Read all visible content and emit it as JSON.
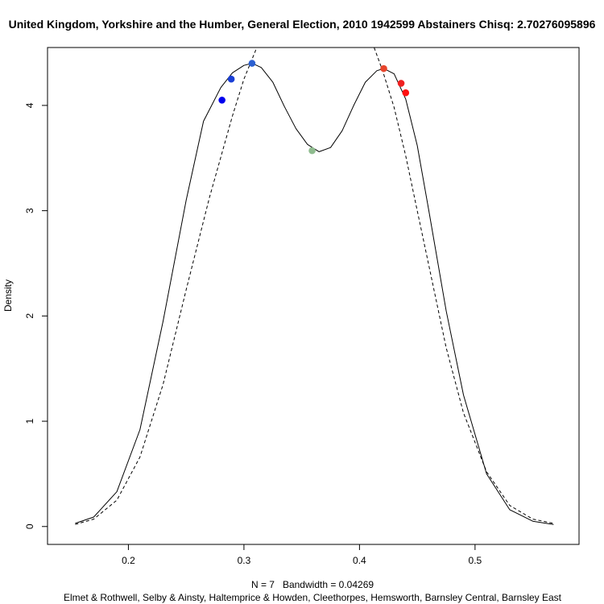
{
  "chart_data": {
    "type": "line",
    "title": "United Kingdom, Yorkshire and the Humber, General Election, 2010 1942599 Abstainers Chisq: 2.70276095896",
    "ylabel": "Density",
    "xlabel": "N = 7   Bandwidth = 0.04269",
    "subtitle": "Elmet & Rothwell, Selby & Ainsty, Haltemprice & Howden, Cleethorpes, Hemsworth, Barnsley Central, Barnsley East",
    "xlim": [
      0.13,
      0.59
    ],
    "ylim": [
      -0.17,
      4.55
    ],
    "xticks": [
      "0.2",
      "0.3",
      "0.4",
      "0.5"
    ],
    "yticks": [
      "0",
      "1",
      "2",
      "3",
      "4"
    ],
    "grid": false,
    "series": [
      {
        "style": "solid",
        "color": "#000000",
        "x": [
          0.154,
          0.17,
          0.19,
          0.21,
          0.23,
          0.25,
          0.265,
          0.28,
          0.29,
          0.3,
          0.307,
          0.315,
          0.325,
          0.335,
          0.345,
          0.355,
          0.365,
          0.375,
          0.385,
          0.395,
          0.405,
          0.415,
          0.421,
          0.43,
          0.44,
          0.45,
          0.46,
          0.475,
          0.49,
          0.51,
          0.53,
          0.55,
          0.568
        ],
        "y": [
          0.03,
          0.09,
          0.33,
          0.92,
          1.95,
          3.1,
          3.85,
          4.17,
          4.31,
          4.38,
          4.4,
          4.36,
          4.22,
          3.99,
          3.78,
          3.63,
          3.56,
          3.6,
          3.76,
          4.0,
          4.22,
          4.33,
          4.35,
          4.3,
          4.06,
          3.62,
          3.0,
          2.05,
          1.25,
          0.5,
          0.16,
          0.05,
          0.02
        ]
      },
      {
        "style": "dashed",
        "color": "#000000",
        "x": [
          0.154,
          0.17,
          0.19,
          0.21,
          0.23,
          0.25,
          0.27,
          0.29,
          0.3,
          0.31,
          0.311
        ],
        "y": [
          0.02,
          0.07,
          0.25,
          0.66,
          1.35,
          2.25,
          3.12,
          3.9,
          4.25,
          4.52,
          4.6
        ]
      },
      {
        "style": "dashed",
        "color": "#000000",
        "x": [
          0.411,
          0.42,
          0.43,
          0.44,
          0.45,
          0.46,
          0.475,
          0.49,
          0.51,
          0.53,
          0.55,
          0.568
        ],
        "y": [
          4.6,
          4.33,
          3.98,
          3.52,
          3.0,
          2.48,
          1.7,
          1.08,
          0.52,
          0.2,
          0.07,
          0.03
        ]
      }
    ],
    "points": [
      {
        "x": 0.281,
        "y": 4.05,
        "color": "#0000ee"
      },
      {
        "x": 0.289,
        "y": 4.25,
        "color": "#1a3fd6"
      },
      {
        "x": 0.307,
        "y": 4.4,
        "color": "#2b5fd0"
      },
      {
        "x": 0.359,
        "y": 3.57,
        "color": "#8fbc8f"
      },
      {
        "x": 0.421,
        "y": 4.35,
        "color": "#e8452c"
      },
      {
        "x": 0.436,
        "y": 4.21,
        "color": "#f02020"
      },
      {
        "x": 0.44,
        "y": 4.12,
        "color": "#ff1010"
      }
    ]
  }
}
